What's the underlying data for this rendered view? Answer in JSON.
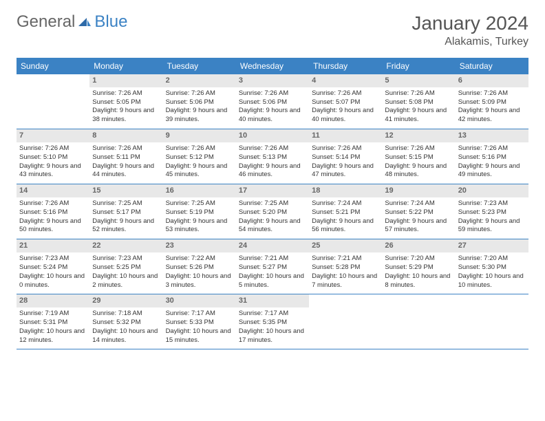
{
  "logo": {
    "text1": "General",
    "text2": "Blue"
  },
  "title": "January 2024",
  "location": "Alakamis, Turkey",
  "styling": {
    "header_bg": "#3b82c4",
    "header_fg": "#ffffff",
    "daynum_bg": "#e8e8e8",
    "daynum_fg": "#666666",
    "border_color": "#3b82c4",
    "body_font_size": 9.5,
    "title_font_size": 28,
    "location_font_size": 16,
    "dayhead_font_size": 12
  },
  "day_names": [
    "Sunday",
    "Monday",
    "Tuesday",
    "Wednesday",
    "Thursday",
    "Friday",
    "Saturday"
  ],
  "weeks": [
    [
      {
        "n": "",
        "sunrise": "",
        "sunset": "",
        "daylight": ""
      },
      {
        "n": "1",
        "sunrise": "Sunrise: 7:26 AM",
        "sunset": "Sunset: 5:05 PM",
        "daylight": "Daylight: 9 hours and 38 minutes."
      },
      {
        "n": "2",
        "sunrise": "Sunrise: 7:26 AM",
        "sunset": "Sunset: 5:06 PM",
        "daylight": "Daylight: 9 hours and 39 minutes."
      },
      {
        "n": "3",
        "sunrise": "Sunrise: 7:26 AM",
        "sunset": "Sunset: 5:06 PM",
        "daylight": "Daylight: 9 hours and 40 minutes."
      },
      {
        "n": "4",
        "sunrise": "Sunrise: 7:26 AM",
        "sunset": "Sunset: 5:07 PM",
        "daylight": "Daylight: 9 hours and 40 minutes."
      },
      {
        "n": "5",
        "sunrise": "Sunrise: 7:26 AM",
        "sunset": "Sunset: 5:08 PM",
        "daylight": "Daylight: 9 hours and 41 minutes."
      },
      {
        "n": "6",
        "sunrise": "Sunrise: 7:26 AM",
        "sunset": "Sunset: 5:09 PM",
        "daylight": "Daylight: 9 hours and 42 minutes."
      }
    ],
    [
      {
        "n": "7",
        "sunrise": "Sunrise: 7:26 AM",
        "sunset": "Sunset: 5:10 PM",
        "daylight": "Daylight: 9 hours and 43 minutes."
      },
      {
        "n": "8",
        "sunrise": "Sunrise: 7:26 AM",
        "sunset": "Sunset: 5:11 PM",
        "daylight": "Daylight: 9 hours and 44 minutes."
      },
      {
        "n": "9",
        "sunrise": "Sunrise: 7:26 AM",
        "sunset": "Sunset: 5:12 PM",
        "daylight": "Daylight: 9 hours and 45 minutes."
      },
      {
        "n": "10",
        "sunrise": "Sunrise: 7:26 AM",
        "sunset": "Sunset: 5:13 PM",
        "daylight": "Daylight: 9 hours and 46 minutes."
      },
      {
        "n": "11",
        "sunrise": "Sunrise: 7:26 AM",
        "sunset": "Sunset: 5:14 PM",
        "daylight": "Daylight: 9 hours and 47 minutes."
      },
      {
        "n": "12",
        "sunrise": "Sunrise: 7:26 AM",
        "sunset": "Sunset: 5:15 PM",
        "daylight": "Daylight: 9 hours and 48 minutes."
      },
      {
        "n": "13",
        "sunrise": "Sunrise: 7:26 AM",
        "sunset": "Sunset: 5:16 PM",
        "daylight": "Daylight: 9 hours and 49 minutes."
      }
    ],
    [
      {
        "n": "14",
        "sunrise": "Sunrise: 7:26 AM",
        "sunset": "Sunset: 5:16 PM",
        "daylight": "Daylight: 9 hours and 50 minutes."
      },
      {
        "n": "15",
        "sunrise": "Sunrise: 7:25 AM",
        "sunset": "Sunset: 5:17 PM",
        "daylight": "Daylight: 9 hours and 52 minutes."
      },
      {
        "n": "16",
        "sunrise": "Sunrise: 7:25 AM",
        "sunset": "Sunset: 5:19 PM",
        "daylight": "Daylight: 9 hours and 53 minutes."
      },
      {
        "n": "17",
        "sunrise": "Sunrise: 7:25 AM",
        "sunset": "Sunset: 5:20 PM",
        "daylight": "Daylight: 9 hours and 54 minutes."
      },
      {
        "n": "18",
        "sunrise": "Sunrise: 7:24 AM",
        "sunset": "Sunset: 5:21 PM",
        "daylight": "Daylight: 9 hours and 56 minutes."
      },
      {
        "n": "19",
        "sunrise": "Sunrise: 7:24 AM",
        "sunset": "Sunset: 5:22 PM",
        "daylight": "Daylight: 9 hours and 57 minutes."
      },
      {
        "n": "20",
        "sunrise": "Sunrise: 7:23 AM",
        "sunset": "Sunset: 5:23 PM",
        "daylight": "Daylight: 9 hours and 59 minutes."
      }
    ],
    [
      {
        "n": "21",
        "sunrise": "Sunrise: 7:23 AM",
        "sunset": "Sunset: 5:24 PM",
        "daylight": "Daylight: 10 hours and 0 minutes."
      },
      {
        "n": "22",
        "sunrise": "Sunrise: 7:23 AM",
        "sunset": "Sunset: 5:25 PM",
        "daylight": "Daylight: 10 hours and 2 minutes."
      },
      {
        "n": "23",
        "sunrise": "Sunrise: 7:22 AM",
        "sunset": "Sunset: 5:26 PM",
        "daylight": "Daylight: 10 hours and 3 minutes."
      },
      {
        "n": "24",
        "sunrise": "Sunrise: 7:21 AM",
        "sunset": "Sunset: 5:27 PM",
        "daylight": "Daylight: 10 hours and 5 minutes."
      },
      {
        "n": "25",
        "sunrise": "Sunrise: 7:21 AM",
        "sunset": "Sunset: 5:28 PM",
        "daylight": "Daylight: 10 hours and 7 minutes."
      },
      {
        "n": "26",
        "sunrise": "Sunrise: 7:20 AM",
        "sunset": "Sunset: 5:29 PM",
        "daylight": "Daylight: 10 hours and 8 minutes."
      },
      {
        "n": "27",
        "sunrise": "Sunrise: 7:20 AM",
        "sunset": "Sunset: 5:30 PM",
        "daylight": "Daylight: 10 hours and 10 minutes."
      }
    ],
    [
      {
        "n": "28",
        "sunrise": "Sunrise: 7:19 AM",
        "sunset": "Sunset: 5:31 PM",
        "daylight": "Daylight: 10 hours and 12 minutes."
      },
      {
        "n": "29",
        "sunrise": "Sunrise: 7:18 AM",
        "sunset": "Sunset: 5:32 PM",
        "daylight": "Daylight: 10 hours and 14 minutes."
      },
      {
        "n": "30",
        "sunrise": "Sunrise: 7:17 AM",
        "sunset": "Sunset: 5:33 PM",
        "daylight": "Daylight: 10 hours and 15 minutes."
      },
      {
        "n": "31",
        "sunrise": "Sunrise: 7:17 AM",
        "sunset": "Sunset: 5:35 PM",
        "daylight": "Daylight: 10 hours and 17 minutes."
      },
      {
        "n": "",
        "sunrise": "",
        "sunset": "",
        "daylight": ""
      },
      {
        "n": "",
        "sunrise": "",
        "sunset": "",
        "daylight": ""
      },
      {
        "n": "",
        "sunrise": "",
        "sunset": "",
        "daylight": ""
      }
    ]
  ]
}
